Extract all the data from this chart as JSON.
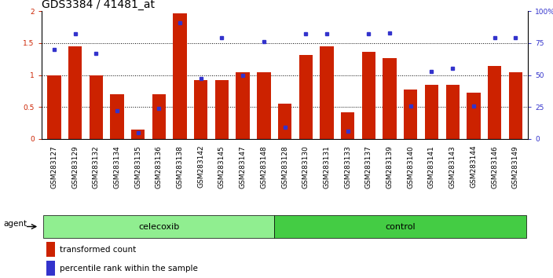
{
  "title": "GDS3384 / 41481_at",
  "samples": [
    "GSM283127",
    "GSM283129",
    "GSM283132",
    "GSM283134",
    "GSM283135",
    "GSM283136",
    "GSM283138",
    "GSM283142",
    "GSM283145",
    "GSM283147",
    "GSM283148",
    "GSM283128",
    "GSM283130",
    "GSM283131",
    "GSM283133",
    "GSM283137",
    "GSM283139",
    "GSM283140",
    "GSM283141",
    "GSM283143",
    "GSM283144",
    "GSM283146",
    "GSM283149"
  ],
  "red_values": [
    1.0,
    1.45,
    1.0,
    0.7,
    0.15,
    0.7,
    1.96,
    0.92,
    0.92,
    1.05,
    1.05,
    0.55,
    1.32,
    1.45,
    0.42,
    1.36,
    1.27,
    0.77,
    0.85,
    0.85,
    0.72,
    1.14,
    1.05
  ],
  "blue_values_pct": [
    70,
    82,
    67,
    22,
    5,
    24,
    91,
    47,
    79,
    50,
    76,
    9,
    82,
    82,
    6,
    82,
    83,
    26,
    53,
    55,
    26,
    79,
    79
  ],
  "celecoxib_count": 11,
  "control_count": 12,
  "group_celecoxib_label": "celecoxib",
  "group_control_label": "control",
  "agent_label": "agent",
  "legend_red": "transformed count",
  "legend_blue": "percentile rank within the sample",
  "ylim_left": [
    0,
    2
  ],
  "ylim_right": [
    0,
    100
  ],
  "yticks_left": [
    0,
    0.5,
    1.0,
    1.5,
    2.0
  ],
  "ytick_labels_left": [
    "0",
    "0.5",
    "1",
    "1.5",
    "2"
  ],
  "yticks_right": [
    0,
    25,
    50,
    75,
    100
  ],
  "ytick_labels_right": [
    "0",
    "25",
    "50",
    "75",
    "100%"
  ],
  "bar_color": "#CC2200",
  "dot_color": "#3333CC",
  "celecoxib_bg": "#90EE90",
  "control_bg": "#44CC44",
  "xtick_bg": "#CCCCCC",
  "bar_width": 0.65,
  "title_fontsize": 10,
  "tick_fontsize": 6.5,
  "label_fontsize": 8
}
